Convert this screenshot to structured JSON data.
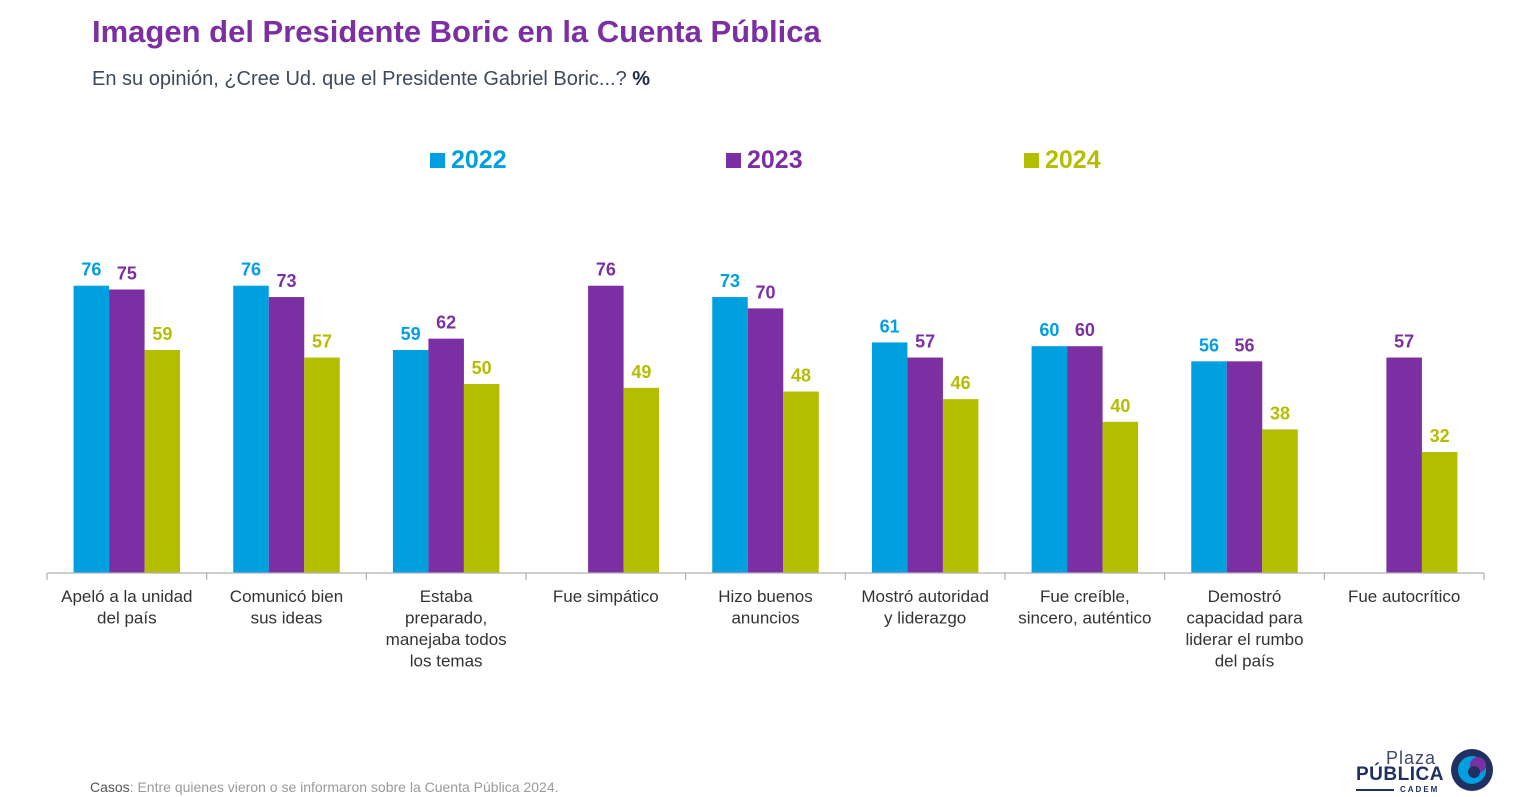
{
  "header": {
    "title": "Imagen del Presidente Boric en la Cuenta Pública",
    "subtitle": "En su opinión, ¿Cree Ud. que el Presidente Gabriel Boric...?",
    "unit": "%"
  },
  "colors": {
    "title": "#7b2fa3",
    "series_2022": "#009fe0",
    "series_2023": "#7b2fa3",
    "series_2024": "#b4be00"
  },
  "chart_data": {
    "type": "bar",
    "title": "Imagen del Presidente Boric en la Cuenta Pública",
    "subtitle": "En su opinión, ¿Cree Ud. que el Presidente Gabriel Boric...? %",
    "legend_position": "top",
    "grid": false,
    "ylim": [
      0,
      100
    ],
    "categories": [
      [
        "Apeló a la unidad",
        "del país"
      ],
      [
        "Comunicó bien",
        "sus ideas"
      ],
      [
        "Estaba",
        "preparado,",
        "manejaba todos",
        "los temas"
      ],
      [
        "Fue simpático"
      ],
      [
        "Hizo buenos",
        "anuncios"
      ],
      [
        "Mostró autoridad",
        "y liderazgo"
      ],
      [
        "Fue creíble,",
        "sincero, auténtico"
      ],
      [
        "Demostró",
        "capacidad para",
        "liderar el rumbo",
        "del país"
      ],
      [
        "Fue autocrítico"
      ]
    ],
    "series": [
      {
        "name": "2022",
        "color": "#009fe0",
        "values": [
          76,
          76,
          59,
          null,
          73,
          61,
          60,
          56,
          null
        ]
      },
      {
        "name": "2023",
        "color": "#7b2fa3",
        "values": [
          75,
          73,
          62,
          76,
          70,
          57,
          60,
          56,
          57
        ]
      },
      {
        "name": "2024",
        "color": "#b4be00",
        "values": [
          59,
          57,
          50,
          49,
          48,
          46,
          40,
          38,
          32
        ]
      }
    ]
  },
  "footer": {
    "label": "Casos",
    "text": ": Entre quienes vieron o se informaron sobre la Cuenta Pública 2024."
  },
  "logo": {
    "line1": "Plaza",
    "line2": "PÚBLICA",
    "line3": "CADEM"
  }
}
